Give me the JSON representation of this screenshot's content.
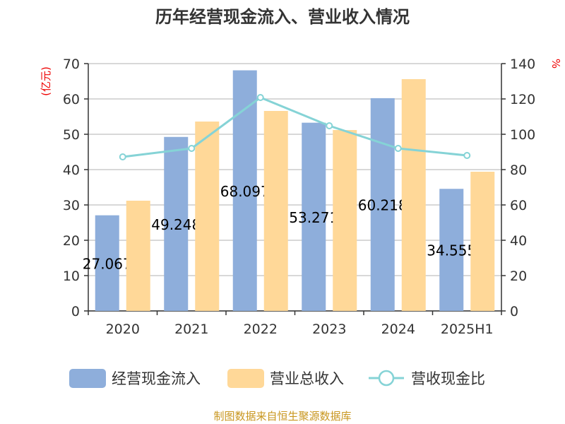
{
  "chart_data": {
    "type": "bar",
    "title": "历年经营现金流入、营业收入情况",
    "categories": [
      "2020",
      "2021",
      "2022",
      "2023",
      "2024",
      "2025H1"
    ],
    "left_axis": {
      "unit": "(亿元)",
      "ylim": [
        0,
        70
      ],
      "ticks": [
        0,
        10,
        20,
        30,
        40,
        50,
        60,
        70
      ]
    },
    "right_axis": {
      "unit": "%",
      "ylim": [
        0,
        140
      ],
      "ticks": [
        0,
        20,
        40,
        60,
        80,
        100,
        120,
        140
      ]
    },
    "series": [
      {
        "name": "经营现金流入",
        "type": "bar",
        "axis": "left",
        "color": "#8eaedb",
        "values": [
          27.067,
          49.248,
          68.097,
          53.271,
          60.218,
          34.555
        ],
        "labels": [
          "27.067",
          "49.248",
          "68.097",
          "53.271",
          "60.218",
          "34.555"
        ]
      },
      {
        "name": "营业总收入",
        "type": "bar",
        "axis": "left",
        "color": "#ffd898",
        "values": [
          31.2,
          53.6,
          56.6,
          51.2,
          65.6,
          39.4
        ]
      },
      {
        "name": "营收现金比",
        "type": "line",
        "axis": "right",
        "color": "#85d3d6",
        "values": [
          87.2,
          92,
          120.8,
          104.8,
          92,
          88
        ]
      }
    ],
    "grid": true,
    "legend_position": "bottom"
  },
  "source": "制图数据来自恒生聚源数据库"
}
